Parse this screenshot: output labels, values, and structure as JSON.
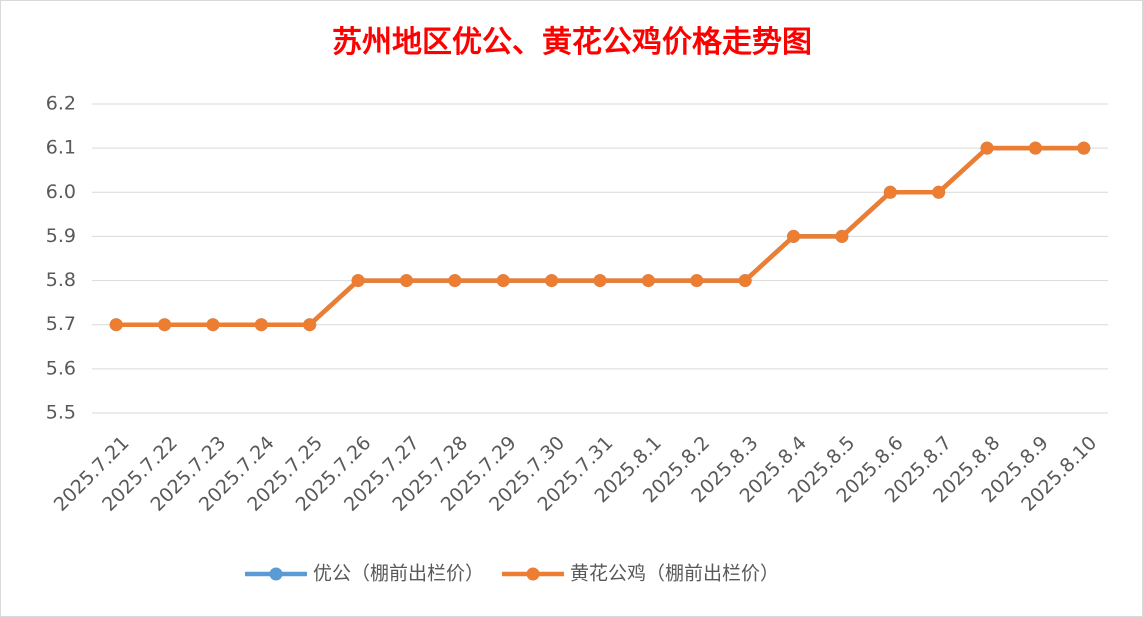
{
  "chart_data": {
    "type": "line",
    "title": "苏州地区优公、黄花公鸡价格走势图",
    "categories": [
      "2025.7.21",
      "2025.7.22",
      "2025.7.23",
      "2025.7.24",
      "2025.7.25",
      "2025.7.26",
      "2025.7.27",
      "2025.7.28",
      "2025.7.29",
      "2025.7.30",
      "2025.7.31",
      "2025.8.1",
      "2025.8.2",
      "2025.8.3",
      "2025.8.4",
      "2025.8.5",
      "2025.8.6",
      "2025.8.7",
      "2025.8.8",
      "2025.8.9",
      "2025.8.10"
    ],
    "series": [
      {
        "name": "优公（棚前出栏价）",
        "color": "#5b9bd5",
        "values": [
          5.7,
          5.7,
          5.7,
          5.7,
          5.7,
          5.8,
          5.8,
          5.8,
          5.8,
          5.8,
          5.8,
          5.8,
          5.8,
          5.8,
          5.9,
          5.9,
          6.0,
          6.0,
          6.1,
          6.1,
          6.1
        ]
      },
      {
        "name": "黄花公鸡（棚前出栏价）",
        "color": "#ed7d31",
        "values": [
          5.7,
          5.7,
          5.7,
          5.7,
          5.7,
          5.8,
          5.8,
          5.8,
          5.8,
          5.8,
          5.8,
          5.8,
          5.8,
          5.8,
          5.9,
          5.9,
          6.0,
          6.0,
          6.1,
          6.1,
          6.1
        ]
      }
    ],
    "ylim": [
      5.5,
      6.2
    ],
    "yticks": [
      5.5,
      5.6,
      5.7,
      5.8,
      5.9,
      {
        "value": 6,
        "label": "6.0"
      },
      6.1,
      6.2
    ],
    "grid": true,
    "legend": "bottom"
  }
}
